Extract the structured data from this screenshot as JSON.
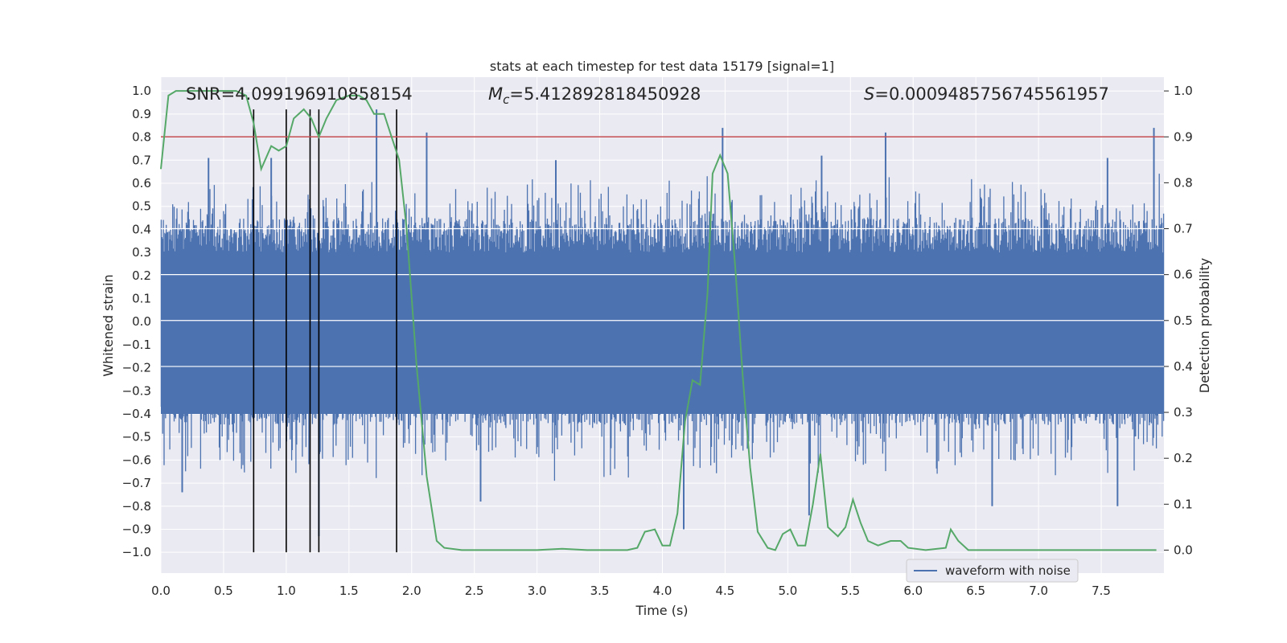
{
  "chart_data": {
    "type": "line",
    "title": "stats at each timestep for test data 15179 [signal=1]",
    "xlabel": "Time (s)",
    "ylabel": "Whitened strain",
    "y2label": "Detection probability",
    "xlim": [
      0.0,
      8.0
    ],
    "ylim": [
      -1.09,
      1.06
    ],
    "y2lim": [
      -0.05,
      1.03
    ],
    "xticks": [
      "0.0",
      "0.5",
      "1.0",
      "1.5",
      "2.0",
      "2.5",
      "3.0",
      "3.5",
      "4.0",
      "4.5",
      "5.0",
      "5.5",
      "6.0",
      "6.5",
      "7.0",
      "7.5"
    ],
    "yticks": [
      "1.0",
      "0.9",
      "0.8",
      "0.7",
      "0.6",
      "0.5",
      "0.4",
      "0.3",
      "0.2",
      "0.1",
      "0.0",
      "-0.1",
      "-0.2",
      "-0.3",
      "-0.4",
      "-0.5",
      "-0.6",
      "-0.7",
      "-0.8",
      "-0.9",
      "-1.0"
    ],
    "y2ticks": [
      "1.0",
      "0.9",
      "0.8",
      "0.7",
      "0.6",
      "0.5",
      "0.4",
      "0.3",
      "0.2",
      "0.1",
      "0.0"
    ],
    "annotations": {
      "snr": "SNR=4.099196910858154",
      "mc_symbol": "M",
      "mc_sub": "c",
      "mc_value": "=5.412892818450928",
      "s_symbol": "S",
      "s_value": "=0.0009485756745561957"
    },
    "legend": {
      "label": "waveform with noise",
      "location": "lower-right"
    },
    "threshold": {
      "value": 0.9,
      "axis": "y2",
      "color": "#c44e52"
    },
    "vlines": [
      0.74,
      1.0,
      1.19,
      1.26,
      1.88
    ],
    "colors": {
      "waveform": "#4c72b0",
      "probability": "#55a868",
      "threshold": "#c44e52",
      "vline": "#000000",
      "bg": "#eaeaf2"
    },
    "waveform_spikes": [
      {
        "t": 1.72,
        "v": 0.92
      },
      {
        "t": 2.12,
        "v": 0.82
      },
      {
        "t": 4.48,
        "v": 0.84
      },
      {
        "t": 5.78,
        "v": 0.82
      },
      {
        "t": 7.92,
        "v": 0.84
      },
      {
        "t": 4.17,
        "v": -0.9
      },
      {
        "t": 0.17,
        "v": -0.74
      },
      {
        "t": 2.55,
        "v": -0.78
      },
      {
        "t": 6.63,
        "v": -0.8
      },
      {
        "t": 7.63,
        "v": -0.8
      },
      {
        "t": 5.17,
        "v": -0.84
      },
      {
        "t": 1.26,
        "v": -0.93
      },
      {
        "t": 0.38,
        "v": 0.71
      },
      {
        "t": 0.88,
        "v": 0.71
      },
      {
        "t": 3.15,
        "v": 0.7
      },
      {
        "t": 5.27,
        "v": 0.72
      },
      {
        "t": 7.55,
        "v": 0.71
      }
    ],
    "probability": {
      "t": [
        0.0,
        0.06,
        0.12,
        0.2,
        0.4,
        0.6,
        0.68,
        0.74,
        0.8,
        0.88,
        0.94,
        1.0,
        1.06,
        1.14,
        1.2,
        1.26,
        1.32,
        1.4,
        1.5,
        1.58,
        1.64,
        1.7,
        1.78,
        1.84,
        1.9,
        1.96,
        2.04,
        2.12,
        2.2,
        2.26,
        2.4,
        2.6,
        2.8,
        3.0,
        3.2,
        3.4,
        3.6,
        3.72,
        3.8,
        3.86,
        3.94,
        4.0,
        4.06,
        4.12,
        4.18,
        4.24,
        4.3,
        4.36,
        4.4,
        4.46,
        4.52,
        4.58,
        4.64,
        4.7,
        4.76,
        4.84,
        4.9,
        4.96,
        5.02,
        5.08,
        5.14,
        5.2,
        5.26,
        5.32,
        5.4,
        5.46,
        5.52,
        5.58,
        5.64,
        5.72,
        5.82,
        5.9,
        5.96,
        6.1,
        6.26,
        6.3,
        6.36,
        6.44,
        6.6,
        7.0,
        7.5,
        7.94
      ],
      "values": [
        0.83,
        0.99,
        1.0,
        1.0,
        1.0,
        1.0,
        0.99,
        0.93,
        0.83,
        0.88,
        0.87,
        0.88,
        0.94,
        0.96,
        0.94,
        0.9,
        0.94,
        0.98,
        0.99,
        0.99,
        0.98,
        0.95,
        0.95,
        0.9,
        0.85,
        0.7,
        0.4,
        0.16,
        0.02,
        0.005,
        0.0,
        0.0,
        0.0,
        0.0,
        0.003,
        0.0,
        0.0,
        0.0,
        0.005,
        0.04,
        0.045,
        0.01,
        0.01,
        0.08,
        0.28,
        0.37,
        0.36,
        0.56,
        0.82,
        0.86,
        0.82,
        0.62,
        0.38,
        0.18,
        0.04,
        0.005,
        0.0,
        0.035,
        0.045,
        0.01,
        0.01,
        0.1,
        0.21,
        0.05,
        0.03,
        0.05,
        0.11,
        0.06,
        0.02,
        0.01,
        0.02,
        0.02,
        0.005,
        0.0,
        0.005,
        0.045,
        0.02,
        0.0,
        0.0,
        0.0,
        0.0,
        0.0
      ]
    }
  }
}
